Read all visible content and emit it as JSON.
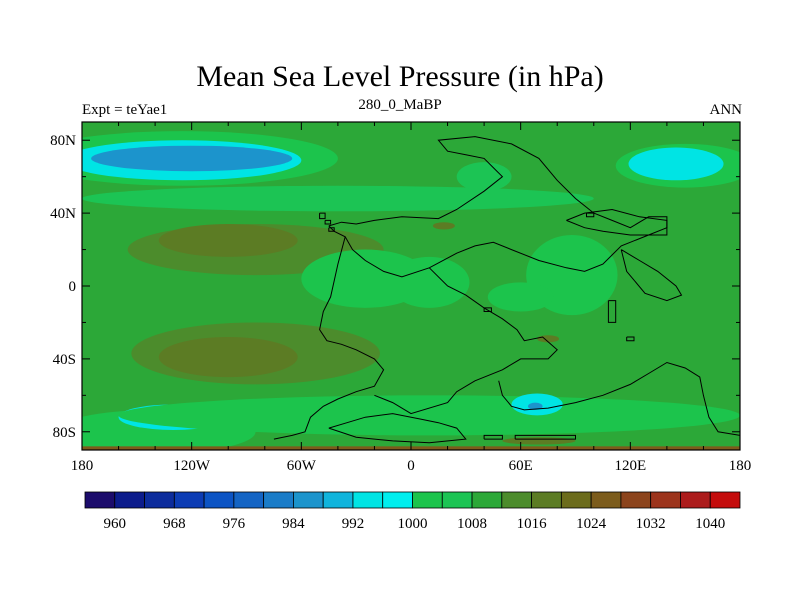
{
  "chart_data": {
    "type": "heatmap",
    "title": "Mean Sea Level Pressure (in hPa)",
    "subtitle": "280_0_MaBP",
    "left_string": "Expt = teYae1",
    "right_string": "ANN",
    "x_axis": {
      "range": [
        -180,
        180
      ],
      "ticks": [
        -180,
        -120,
        -60,
        0,
        60,
        120,
        180
      ],
      "tick_labels": [
        "180",
        "120W",
        "60W",
        "0",
        "60E",
        "120E",
        "180"
      ]
    },
    "y_axis": {
      "range": [
        -90,
        90
      ],
      "ticks": [
        80,
        40,
        0,
        -40,
        -80
      ],
      "tick_labels": [
        "80N",
        "40N",
        "0",
        "40S",
        "80S"
      ]
    },
    "colorbar": {
      "levels": [
        956,
        960,
        964,
        968,
        972,
        976,
        980,
        984,
        988,
        992,
        996,
        1000,
        1004,
        1008,
        1012,
        1016,
        1020,
        1024,
        1028,
        1032,
        1036,
        1040,
        1044
      ],
      "labels": [
        "960",
        "968",
        "976",
        "984",
        "992",
        "1000",
        "1008",
        "1016",
        "1024",
        "1032",
        "1040"
      ],
      "colors": [
        "#1c0c6c",
        "#0c1c8c",
        "#0c2c9c",
        "#0c3cb4",
        "#0c54c4",
        "#1464c4",
        "#1a7cc8",
        "#1c94cc",
        "#10b4dc",
        "#00e4e4",
        "#00eeee",
        "#1cc44c",
        "#1cc454",
        "#2ca838",
        "#4c8c2c",
        "#5c7c24",
        "#6c6c1c",
        "#7c5c1c",
        "#8c441c",
        "#9c341c",
        "#ac1c1c",
        "#c40c0c"
      ]
    },
    "background_value": 1008,
    "regions": [
      {
        "lon": -85,
        "lat": 20,
        "rlon": 70,
        "rlat": 14,
        "value": 1012
      },
      {
        "lon": -100,
        "lat": 25,
        "rlon": 38,
        "rlat": 9,
        "value": 1016
      },
      {
        "lon": -85,
        "lat": -37,
        "rlon": 68,
        "rlat": 17,
        "value": 1012
      },
      {
        "lon": -100,
        "lat": -39,
        "rlon": 38,
        "rlat": 11,
        "value": 1016
      },
      {
        "lon": -125,
        "lat": 70,
        "rlon": 85,
        "rlat": 15,
        "value": 1000
      },
      {
        "lon": -125,
        "lat": 69,
        "rlon": 65,
        "rlat": 11,
        "value": 992
      },
      {
        "lon": -120,
        "lat": 70,
        "rlon": 55,
        "rlat": 7,
        "value": 984
      },
      {
        "lon": 150,
        "lat": 66,
        "rlon": 38,
        "rlat": 12,
        "value": 1000
      },
      {
        "lon": 145,
        "lat": 67,
        "rlon": 26,
        "rlat": 9,
        "value": 992
      },
      {
        "lon": -40,
        "lat": 48,
        "rlon": 140,
        "rlat": 7,
        "value": 1004
      },
      {
        "lon": -140,
        "lat": -80,
        "rlon": 55,
        "rlat": 12,
        "value": 1000
      },
      {
        "lon": -130,
        "lat": -72,
        "rlon": 30,
        "rlat": 7,
        "value": 992
      },
      {
        "lon": 10,
        "lat": -71,
        "rlon": 170,
        "rlat": 11,
        "value": 1000
      },
      {
        "lon": -25,
        "lat": 4,
        "rlon": 35,
        "rlat": 16,
        "value": 1000
      },
      {
        "lon": 10,
        "lat": 2,
        "rlon": 22,
        "rlat": 14,
        "value": 1000
      },
      {
        "lon": 88,
        "lat": 6,
        "rlon": 25,
        "rlat": 22,
        "value": 1000
      },
      {
        "lon": 60,
        "lat": -6,
        "rlon": 18,
        "rlat": 8,
        "value": 1000
      },
      {
        "lon": 69,
        "lat": -65,
        "rlon": 14,
        "rlat": 6,
        "value": 992
      },
      {
        "lon": 68,
        "lat": -66,
        "rlon": 4,
        "rlat": 2,
        "value": 984
      },
      {
        "lon": 18,
        "lat": 33,
        "rlon": 6,
        "rlat": 2,
        "value": 1016
      },
      {
        "lon": 75,
        "lat": -29,
        "rlon": 6,
        "rlat": 2,
        "value": 1016
      },
      {
        "lon": 70,
        "lat": -85,
        "rlon": 20,
        "rlat": 2,
        "value": 1016
      },
      {
        "lon": 40,
        "lat": 60,
        "rlon": 15,
        "rlat": 8,
        "value": 1004
      }
    ],
    "coastlines": [
      [
        [
          -45,
          33
        ],
        [
          -38,
          35
        ],
        [
          -30,
          34
        ],
        [
          -20,
          36
        ],
        [
          -5,
          38
        ],
        [
          15,
          37
        ],
        [
          25,
          42
        ],
        [
          40,
          52
        ],
        [
          50,
          60
        ],
        [
          45,
          65
        ],
        [
          40,
          70
        ],
        [
          30,
          72
        ],
        [
          20,
          74
        ],
        [
          15,
          80
        ],
        [
          35,
          82
        ],
        [
          55,
          78
        ],
        [
          70,
          70
        ],
        [
          80,
          58
        ],
        [
          90,
          48
        ],
        [
          100,
          40
        ],
        [
          110,
          36
        ],
        [
          120,
          32
        ],
        [
          125,
          35
        ],
        [
          130,
          38
        ],
        [
          140,
          38
        ],
        [
          140,
          32
        ],
        [
          130,
          28
        ],
        [
          115,
          22
        ],
        [
          105,
          12
        ],
        [
          95,
          8
        ],
        [
          85,
          10
        ],
        [
          70,
          14
        ],
        [
          55,
          20
        ],
        [
          45,
          24
        ],
        [
          35,
          22
        ],
        [
          25,
          18
        ],
        [
          10,
          10
        ],
        [
          -5,
          5
        ],
        [
          -15,
          8
        ],
        [
          -25,
          14
        ],
        [
          -32,
          20
        ],
        [
          -36,
          27
        ],
        [
          -42,
          30
        ],
        [
          -45,
          33
        ]
      ],
      [
        [
          -36,
          27
        ],
        [
          -40,
          12
        ],
        [
          -44,
          -6
        ],
        [
          -48,
          -14
        ],
        [
          -50,
          -24
        ],
        [
          -46,
          -30
        ],
        [
          -38,
          -32
        ],
        [
          -30,
          -35
        ],
        [
          -20,
          -40
        ],
        [
          -15,
          -46
        ],
        [
          -20,
          -55
        ],
        [
          -30,
          -58
        ],
        [
          -40,
          -62
        ],
        [
          -48,
          -66
        ],
        [
          -55,
          -72
        ],
        [
          -58,
          -80
        ],
        [
          -65,
          -82
        ],
        [
          -75,
          -84
        ]
      ],
      [
        [
          10,
          10
        ],
        [
          20,
          0
        ],
        [
          30,
          -5
        ],
        [
          40,
          -12
        ],
        [
          50,
          -18
        ],
        [
          58,
          -24
        ],
        [
          62,
          -30
        ],
        [
          72,
          -28
        ],
        [
          80,
          -35
        ],
        [
          75,
          -40
        ],
        [
          60,
          -40
        ],
        [
          50,
          -46
        ],
        [
          35,
          -52
        ],
        [
          25,
          -58
        ],
        [
          20,
          -64
        ],
        [
          0,
          -70
        ],
        [
          -10,
          -64
        ],
        [
          -20,
          -60
        ]
      ],
      [
        [
          48,
          -52
        ],
        [
          50,
          -60
        ],
        [
          55,
          -66
        ],
        [
          62,
          -68
        ],
        [
          75,
          -67
        ],
        [
          90,
          -64
        ],
        [
          105,
          -60
        ],
        [
          120,
          -54
        ],
        [
          130,
          -48
        ],
        [
          140,
          -42
        ],
        [
          150,
          -45
        ],
        [
          158,
          -50
        ],
        [
          160,
          -60
        ],
        [
          163,
          -72
        ],
        [
          168,
          -80
        ],
        [
          180,
          -82
        ]
      ],
      [
        [
          -45,
          -78
        ],
        [
          -35,
          -75
        ],
        [
          -25,
          -72
        ],
        [
          -10,
          -70
        ],
        [
          5,
          -73
        ],
        [
          15,
          -75
        ],
        [
          25,
          -78
        ],
        [
          30,
          -84
        ],
        [
          10,
          -86
        ],
        [
          -10,
          -85
        ],
        [
          -30,
          -83
        ],
        [
          -45,
          -78
        ]
      ],
      [
        [
          85,
          36
        ],
        [
          95,
          40
        ],
        [
          110,
          42
        ],
        [
          125,
          38
        ],
        [
          140,
          36
        ],
        [
          140,
          28
        ],
        [
          130,
          28
        ],
        [
          120,
          28
        ],
        [
          105,
          30
        ],
        [
          95,
          32
        ],
        [
          85,
          36
        ]
      ],
      [
        [
          115,
          20
        ],
        [
          125,
          14
        ],
        [
          135,
          8
        ],
        [
          145,
          0
        ],
        [
          148,
          -5
        ],
        [
          140,
          -8
        ],
        [
          128,
          -4
        ],
        [
          118,
          8
        ],
        [
          115,
          20
        ]
      ],
      [
        [
          57,
          -84
        ],
        [
          90,
          -84
        ],
        [
          90,
          -82
        ],
        [
          57,
          -82
        ],
        [
          57,
          -84
        ]
      ],
      [
        [
          40,
          -84
        ],
        [
          50,
          -84
        ],
        [
          50,
          -82
        ],
        [
          40,
          -82
        ],
        [
          40,
          -84
        ]
      ],
      [
        [
          108,
          -8
        ],
        [
          112,
          -8
        ],
        [
          112,
          -20
        ],
        [
          108,
          -20
        ],
        [
          108,
          -8
        ]
      ],
      [
        [
          -50,
          40
        ],
        [
          -47,
          40
        ],
        [
          -47,
          37
        ],
        [
          -50,
          37
        ],
        [
          -50,
          40
        ]
      ],
      [
        [
          -45,
          32
        ],
        [
          -42,
          32
        ],
        [
          -42,
          30
        ],
        [
          -45,
          30
        ],
        [
          -45,
          32
        ]
      ],
      [
        [
          -47,
          36
        ],
        [
          -44,
          36
        ],
        [
          -44,
          34
        ],
        [
          -47,
          34
        ],
        [
          -47,
          36
        ]
      ],
      [
        [
          96,
          40
        ],
        [
          100,
          40
        ],
        [
          100,
          38
        ],
        [
          96,
          38
        ],
        [
          96,
          40
        ]
      ],
      [
        [
          40,
          -12
        ],
        [
          44,
          -12
        ],
        [
          44,
          -14
        ],
        [
          40,
          -14
        ],
        [
          40,
          -12
        ]
      ],
      [
        [
          118,
          -28
        ],
        [
          122,
          -28
        ],
        [
          122,
          -30
        ],
        [
          118,
          -30
        ],
        [
          118,
          -28
        ]
      ]
    ]
  }
}
